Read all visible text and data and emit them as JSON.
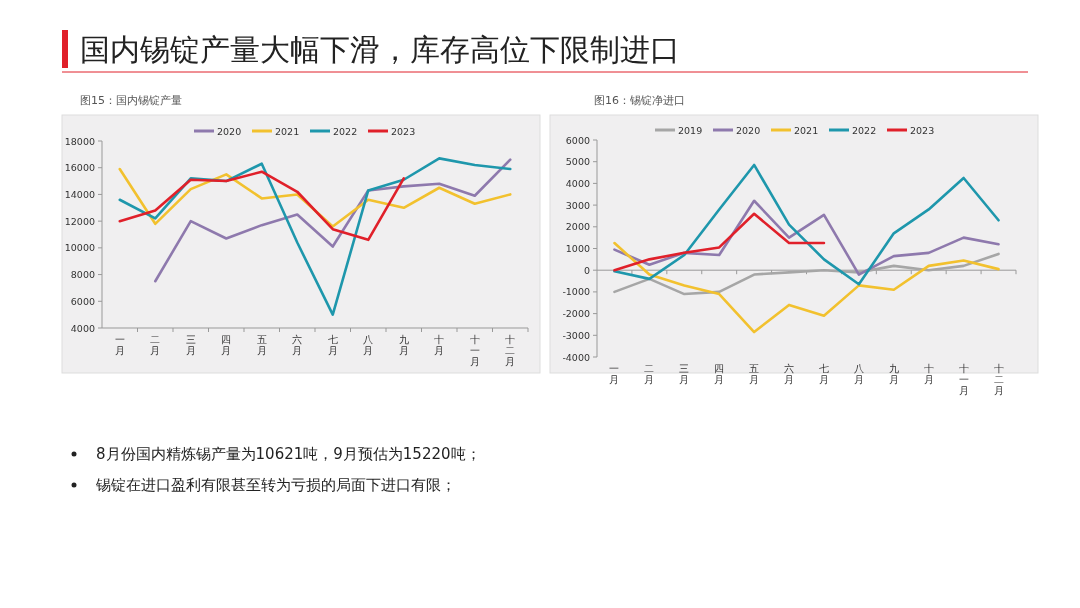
{
  "chart_data": [
    {
      "type": "line",
      "title": "图15：国内锡锭产量",
      "categories": [
        "一月",
        "二月",
        "三月",
        "四月",
        "五月",
        "六月",
        "七月",
        "八月",
        "九月",
        "十月",
        "十一月",
        "十二月"
      ],
      "series": [
        {
          "name": "2020",
          "color": "#8e79ad",
          "values": [
            null,
            7500,
            12000,
            10700,
            11700,
            12500,
            10100,
            14300,
            14600,
            14800,
            13900,
            16600
          ]
        },
        {
          "name": "2021",
          "color": "#f2c12e",
          "values": [
            15900,
            11800,
            14400,
            15500,
            13700,
            14000,
            11600,
            13600,
            13000,
            14500,
            13300,
            14000
          ]
        },
        {
          "name": "2022",
          "color": "#1e97ac",
          "values": [
            13600,
            12200,
            15200,
            15000,
            16300,
            10400,
            5000,
            14300,
            15100,
            16700,
            16200,
            15900
          ]
        },
        {
          "name": "2023",
          "color": "#e0202a",
          "values": [
            12000,
            12800,
            15100,
            15000,
            15700,
            14200,
            11400,
            10600,
            15200,
            null,
            null,
            null
          ]
        }
      ],
      "ylim": [
        4000,
        18000
      ],
      "yticks": [
        4000,
        6000,
        8000,
        10000,
        12000,
        14000,
        16000,
        18000
      ],
      "legend": "top",
      "annotations": [
        "国内锡锭产量大幅下滑，库存高位下限制进口",
        "8月份国内精炼锡产量为10621吨，9月预估为15220吨；",
        "锡锭在进口盈利有限甚至转为亏损的局面下进口有限；"
      ]
    },
    {
      "type": "line",
      "title": "图16：锡锭净进口",
      "categories": [
        "一月",
        "二月",
        "三月",
        "四月",
        "五月",
        "六月",
        "七月",
        "八月",
        "九月",
        "十月",
        "十一月",
        "十二月"
      ],
      "series": [
        {
          "name": "2019",
          "color": "#a6a6a6",
          "values": [
            -1000,
            -400,
            -1100,
            -1000,
            -200,
            -100,
            0,
            -100,
            200,
            0,
            200,
            750
          ]
        },
        {
          "name": "2020",
          "color": "#8e79ad",
          "values": [
            950,
            250,
            800,
            700,
            3200,
            1500,
            2550,
            -200,
            650,
            800,
            1500,
            1200
          ]
        },
        {
          "name": "2021",
          "color": "#f2c12e",
          "values": [
            1250,
            -200,
            -700,
            -1100,
            -2850,
            -1600,
            -2100,
            -700,
            -900,
            200,
            450,
            50
          ]
        },
        {
          "name": "2022",
          "color": "#1e97ac",
          "values": [
            -50,
            -400,
            700,
            2800,
            4850,
            2100,
            500,
            -650,
            1700,
            2800,
            4250,
            2300
          ]
        },
        {
          "name": "2023",
          "color": "#e0202a",
          "values": [
            0,
            500,
            800,
            1050,
            2600,
            1250,
            1250,
            null,
            null,
            null,
            null,
            null
          ]
        }
      ],
      "ylim": [
        -4000,
        6000
      ],
      "yticks": [
        -4000,
        -3000,
        -2000,
        -1000,
        0,
        1000,
        2000,
        3000,
        4000,
        5000,
        6000
      ],
      "legend": "top"
    }
  ]
}
